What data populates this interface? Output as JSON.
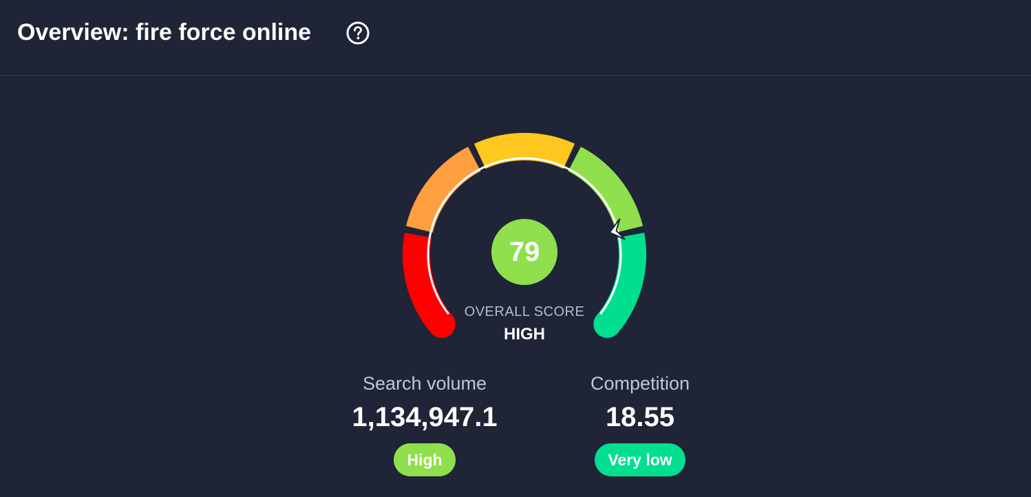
{
  "header": {
    "title": "Overview: fire force online",
    "help_icon": "question-circle-icon"
  },
  "gauge": {
    "score": "79",
    "score_value": 79,
    "score_color": "#8fe04c",
    "overall_label": "OVERALL SCORE",
    "level": "HIGH",
    "segment_colors": [
      "#ff0000",
      "#ff9f3f",
      "#ffc71f",
      "#8fe04c",
      "#00df8f"
    ]
  },
  "metrics": {
    "search_volume": {
      "label": "Search volume",
      "value": "1,134,947.1",
      "badge": "High",
      "badge_color": "#8fe04c"
    },
    "competition": {
      "label": "Competition",
      "value": "18.55",
      "badge": "Very low",
      "badge_color": "#00df8f"
    }
  }
}
